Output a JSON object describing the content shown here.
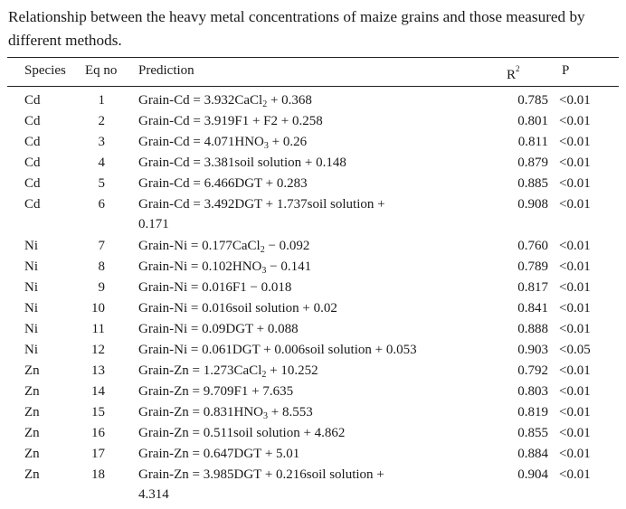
{
  "caption": "Relationship between the heavy metal concentrations of maize grains and those measured by different methods.",
  "header": {
    "species": "Species",
    "eq_no": "Eq no",
    "prediction": "Prediction",
    "r2_base": "R",
    "r2_sup": "2",
    "p": "P"
  },
  "rows": [
    {
      "species": "Cd",
      "eq": "1",
      "pred": [
        [
          "Grain-Cd = 3.932CaCl",
          "2",
          " + 0.368"
        ]
      ],
      "r2": "0.785",
      "p": "<0.01"
    },
    {
      "species": "Cd",
      "eq": "2",
      "pred": [
        [
          "Grain-Cd = 3.919F1 + F2 + 0.258"
        ]
      ],
      "r2": "0.801",
      "p": "<0.01"
    },
    {
      "species": "Cd",
      "eq": "3",
      "pred": [
        [
          "Grain-Cd = 4.071HNO",
          "3",
          " + 0.26"
        ]
      ],
      "r2": "0.811",
      "p": "<0.01"
    },
    {
      "species": "Cd",
      "eq": "4",
      "pred": [
        [
          "Grain-Cd = 3.381soil solution + 0.148"
        ]
      ],
      "r2": "0.879",
      "p": "<0.01"
    },
    {
      "species": "Cd",
      "eq": "5",
      "pred": [
        [
          "Grain-Cd = 6.466DGT + 0.283"
        ]
      ],
      "r2": "0.885",
      "p": "<0.01"
    },
    {
      "species": "Cd",
      "eq": "6",
      "pred": [
        [
          "Grain-Cd = 3.492DGT + 1.737soil solution +"
        ],
        [
          "0.171"
        ]
      ],
      "r2": "0.908",
      "p": "<0.01"
    },
    {
      "species": "Ni",
      "eq": "7",
      "pred": [
        [
          "Grain-Ni = 0.177CaCl",
          "2",
          " − 0.092"
        ]
      ],
      "r2": "0.760",
      "p": "<0.01"
    },
    {
      "species": "Ni",
      "eq": "8",
      "pred": [
        [
          "Grain-Ni = 0.102HNO",
          "3",
          " − 0.141"
        ]
      ],
      "r2": "0.789",
      "p": "<0.01"
    },
    {
      "species": "Ni",
      "eq": "9",
      "pred": [
        [
          "Grain-Ni = 0.016F1 − 0.018"
        ]
      ],
      "r2": "0.817",
      "p": "<0.01"
    },
    {
      "species": "Ni",
      "eq": "10",
      "pred": [
        [
          "Grain-Ni = 0.016soil solution + 0.02"
        ]
      ],
      "r2": "0.841",
      "p": "<0.01"
    },
    {
      "species": "Ni",
      "eq": "11",
      "pred": [
        [
          "Grain-Ni = 0.09DGT + 0.088"
        ]
      ],
      "r2": "0.888",
      "p": "<0.01"
    },
    {
      "species": "Ni",
      "eq": "12",
      "pred": [
        [
          "Grain-Ni = 0.061DGT + 0.006soil solution + 0.053"
        ]
      ],
      "r2": "0.903",
      "p": "<0.05"
    },
    {
      "species": "Zn",
      "eq": "13",
      "pred": [
        [
          "Grain-Zn = 1.273CaCl",
          "2",
          " + 10.252"
        ]
      ],
      "r2": "0.792",
      "p": "<0.01"
    },
    {
      "species": "Zn",
      "eq": "14",
      "pred": [
        [
          "Grain-Zn = 9.709F1 + 7.635"
        ]
      ],
      "r2": "0.803",
      "p": "<0.01"
    },
    {
      "species": "Zn",
      "eq": "15",
      "pred": [
        [
          "Grain-Zn = 0.831HNO",
          "3",
          " + 8.553"
        ]
      ],
      "r2": "0.819",
      "p": "<0.01"
    },
    {
      "species": "Zn",
      "eq": "16",
      "pred": [
        [
          "Grain-Zn = 0.511soil solution + 4.862"
        ]
      ],
      "r2": "0.855",
      "p": "<0.01"
    },
    {
      "species": "Zn",
      "eq": "17",
      "pred": [
        [
          "Grain-Zn = 0.647DGT + 5.01"
        ]
      ],
      "r2": "0.884",
      "p": "<0.01"
    },
    {
      "species": "Zn",
      "eq": "18",
      "pred": [
        [
          "Grain-Zn = 3.985DGT + 0.216soil solution +"
        ],
        [
          "4.314"
        ]
      ],
      "r2": "0.904",
      "p": "<0.01"
    }
  ]
}
